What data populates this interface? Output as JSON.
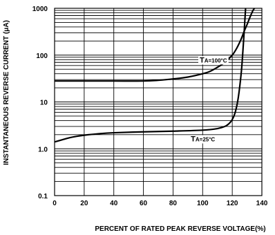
{
  "chart_data": {
    "type": "line",
    "title": "",
    "xlabel": "PERCENT OF RATED PEAK REVERSE VOLTAGE(%)",
    "ylabel": "INSTANTANEOUS REVERSE CURRENT (μA)",
    "xlim": [
      0,
      140
    ],
    "ylim": [
      0.1,
      1000
    ],
    "y_scale": "log",
    "grid": true,
    "x_ticks": [
      0,
      20,
      40,
      60,
      80,
      100,
      120,
      140
    ],
    "x_tick_labels": [
      "0",
      "20",
      "40",
      "60",
      "80",
      "100",
      "120",
      "140"
    ],
    "y_ticks": [
      0.1,
      1,
      10,
      100,
      1000
    ],
    "y_tick_labels": [
      "0.1",
      "1.0",
      "10",
      "100",
      "1000"
    ],
    "series": [
      {
        "name": "TA=100°C",
        "label_main": "T",
        "label_sub": "A=100°C",
        "x": [
          0,
          20,
          40,
          60,
          70,
          80,
          90,
          100,
          105,
          110,
          115,
          120,
          123,
          126,
          128,
          130,
          132,
          134,
          135
        ],
        "values": [
          28,
          28,
          28,
          28,
          29,
          31,
          34,
          40,
          45,
          55,
          70,
          100,
          140,
          220,
          320,
          450,
          650,
          900,
          1000
        ]
      },
      {
        "name": "TA=25°C",
        "label_main": "T",
        "label_sub": "A=25°C",
        "x": [
          0,
          5,
          10,
          15,
          20,
          30,
          40,
          60,
          80,
          100,
          110,
          115,
          118,
          120,
          122,
          124,
          126,
          127,
          128,
          129
        ],
        "values": [
          1.4,
          1.55,
          1.72,
          1.85,
          1.95,
          2.1,
          2.2,
          2.3,
          2.38,
          2.5,
          2.7,
          3.0,
          3.5,
          4.2,
          6.0,
          12,
          40,
          100,
          300,
          1000
        ]
      }
    ],
    "annotations": [
      {
        "series": 0,
        "x": 98,
        "y": 80
      },
      {
        "series": 1,
        "x": 92,
        "y": 1.65
      }
    ]
  }
}
